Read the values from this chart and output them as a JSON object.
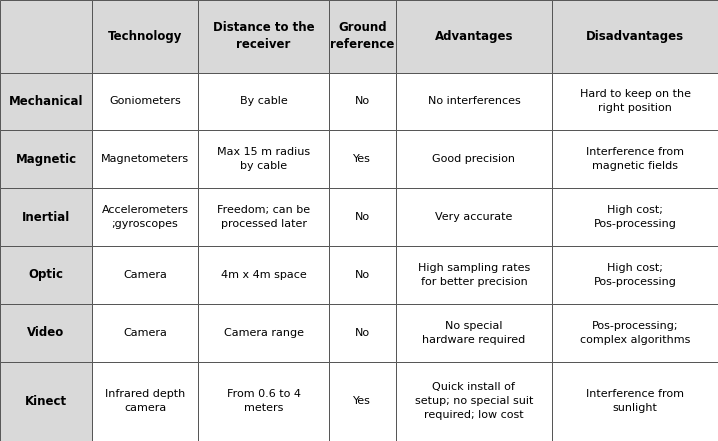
{
  "header_bg": "#d9d9d9",
  "row_bg": "#ffffff",
  "first_col_bg": "#d9d9d9",
  "border_color": "#555555",
  "text_color": "#000000",
  "headers": [
    "",
    "Technology",
    "Distance to the\nreceiver",
    "Ground\nreference",
    "Advantages",
    "Disadvantages"
  ],
  "rows": [
    {
      "label": "Mechanical",
      "cells": [
        "Goniometers",
        "By cable",
        "No",
        "No interferences",
        "Hard to keep on the\nright position"
      ]
    },
    {
      "label": "Magnetic",
      "cells": [
        "Magnetometers",
        "Max 15 m radius\nby cable",
        "Yes",
        "Good precision",
        "Interference from\nmagnetic fields"
      ]
    },
    {
      "label": "Inertial",
      "cells": [
        "Accelerometers\n;gyroscopes",
        "Freedom; can be\nprocessed later",
        "No",
        "Very accurate",
        "High cost;\nPos-processing"
      ]
    },
    {
      "label": "Optic",
      "cells": [
        "Camera",
        "4m x 4m space",
        "No",
        "High sampling rates\nfor better precision",
        "High cost;\nPos-processing"
      ]
    },
    {
      "label": "Video",
      "cells": [
        "Camera",
        "Camera range",
        "No",
        "No special\nhardware required",
        "Pos-processing;\ncomplex algorithms"
      ]
    },
    {
      "label": "Kinect",
      "cells": [
        "Infrared depth\ncamera",
        "From 0.6 to 4\nmeters",
        "Yes",
        "Quick install of\nsetup; no special suit\nrequired; low cost",
        "Interference from\nsunlight"
      ]
    }
  ],
  "col_props": [
    0.128,
    0.148,
    0.182,
    0.093,
    0.218,
    0.231
  ],
  "row_props": [
    0.148,
    0.118,
    0.118,
    0.118,
    0.118,
    0.118,
    0.162
  ],
  "header_fontsize": 8.5,
  "cell_fontsize": 8.0,
  "label_fontsize": 8.5
}
